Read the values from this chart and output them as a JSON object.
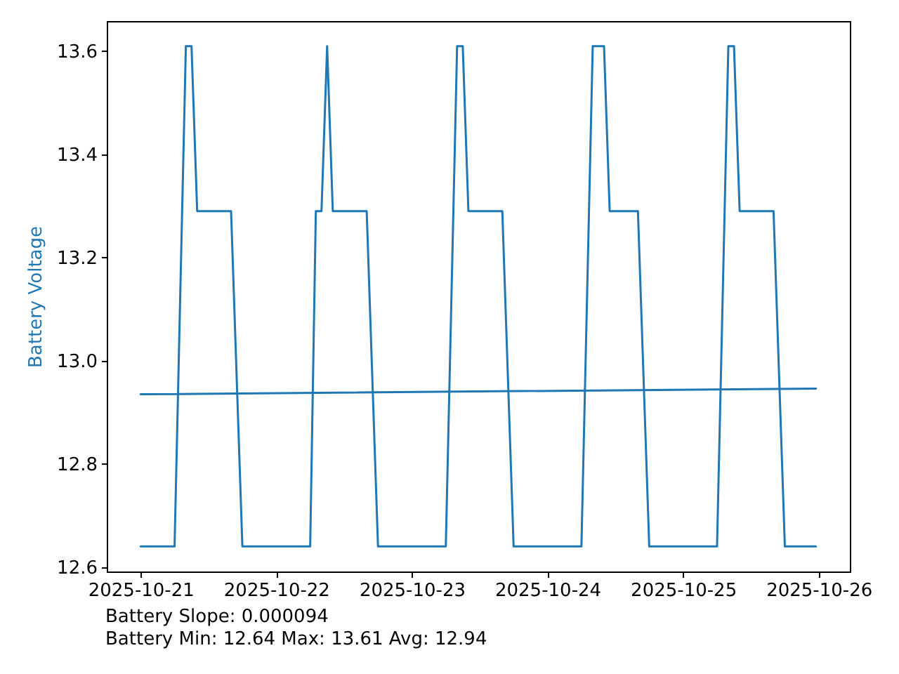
{
  "chart_data": {
    "type": "line",
    "ylabel": "Battery Voltage",
    "annotations": [
      "Battery Slope: 0.000094",
      "Battery Min: 12.64 Max: 13.61 Avg: 12.94"
    ],
    "x": [
      "2025-10-21T00:00",
      "2025-10-21T06:00",
      "2025-10-21T08:00",
      "2025-10-21T09:00",
      "2025-10-21T10:00",
      "2025-10-21T16:00",
      "2025-10-21T18:00",
      "2025-10-22T06:00",
      "2025-10-22T07:00",
      "2025-10-22T08:00",
      "2025-10-22T09:00",
      "2025-10-22T10:00",
      "2025-10-22T16:00",
      "2025-10-22T18:00",
      "2025-10-23T06:00",
      "2025-10-23T08:00",
      "2025-10-23T09:00",
      "2025-10-23T10:00",
      "2025-10-23T16:00",
      "2025-10-23T18:00",
      "2025-10-24T06:00",
      "2025-10-24T08:00",
      "2025-10-24T10:00",
      "2025-10-24T11:00",
      "2025-10-24T16:00",
      "2025-10-24T18:00",
      "2025-10-25T06:00",
      "2025-10-25T08:00",
      "2025-10-25T09:00",
      "2025-10-25T10:00",
      "2025-10-25T16:00",
      "2025-10-25T18:00",
      "2025-10-25T23:30"
    ],
    "series": [
      {
        "color": "#1f77b4",
        "values": [
          12.64,
          12.64,
          13.61,
          13.61,
          13.29,
          13.29,
          12.64,
          12.64,
          13.29,
          13.29,
          13.61,
          13.29,
          13.29,
          12.64,
          12.64,
          13.61,
          13.61,
          13.29,
          13.29,
          12.64,
          12.64,
          13.61,
          13.61,
          13.29,
          13.29,
          12.64,
          12.64,
          13.61,
          13.61,
          13.29,
          13.29,
          12.64,
          12.64
        ]
      },
      {
        "type": "line",
        "color": "#1f77b4",
        "x": [
          "2025-10-21T00:00",
          "2025-10-25T23:30"
        ],
        "values": [
          12.935,
          12.946
        ]
      }
    ],
    "xlim": [
      "2025-10-20T18:00",
      "2025-10-26T05:30"
    ],
    "xticks": [
      "2025-10-21",
      "2025-10-22",
      "2025-10-23",
      "2025-10-24",
      "2025-10-25",
      "2025-10-26"
    ],
    "ylim": [
      12.5915,
      13.6585
    ],
    "yticks": [
      12.6,
      12.8,
      {
        "value": 13,
        "label": "13.0"
      },
      13.2,
      13.4,
      13.6
    ],
    "grid": false
  }
}
